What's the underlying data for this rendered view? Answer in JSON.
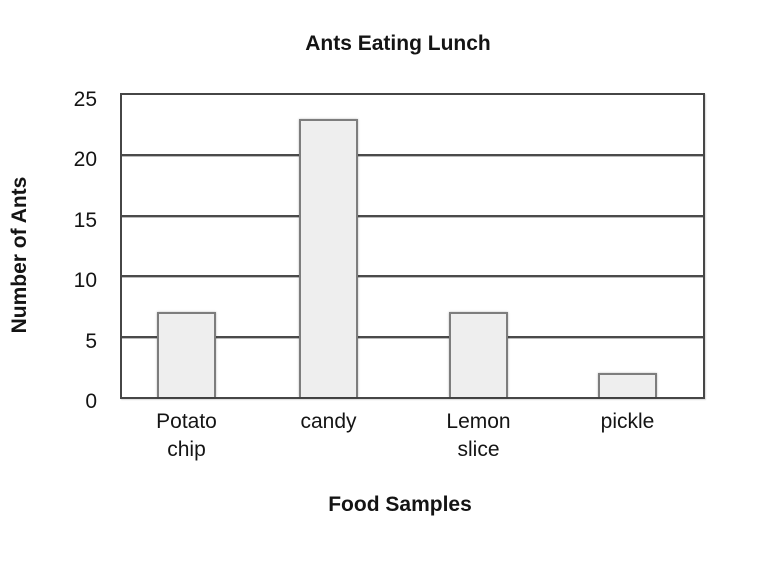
{
  "page": {
    "background_color": "#ffffff",
    "text_color": "#141414"
  },
  "chart_data": {
    "type": "bar",
    "title": "Ants Eating Lunch",
    "xlabel": "Food Samples",
    "ylabel": "Number of Ants",
    "categories": [
      "Potato chip",
      "candy",
      "Lemon slice",
      "pickle"
    ],
    "label_lines": [
      [
        "Potato",
        "chip"
      ],
      [
        "candy"
      ],
      [
        "Lemon",
        "slice"
      ],
      [
        "pickle"
      ]
    ],
    "values": [
      7,
      23,
      7,
      2
    ],
    "ylim": [
      0,
      25
    ],
    "yticks": [
      0,
      5,
      10,
      15,
      20,
      25
    ],
    "grid": "horizontal-only",
    "legend": "none",
    "bar_fill_color": "#eeeeee",
    "bar_border_color": "#7d7d7d",
    "grid_color": "#4a4a4a"
  }
}
